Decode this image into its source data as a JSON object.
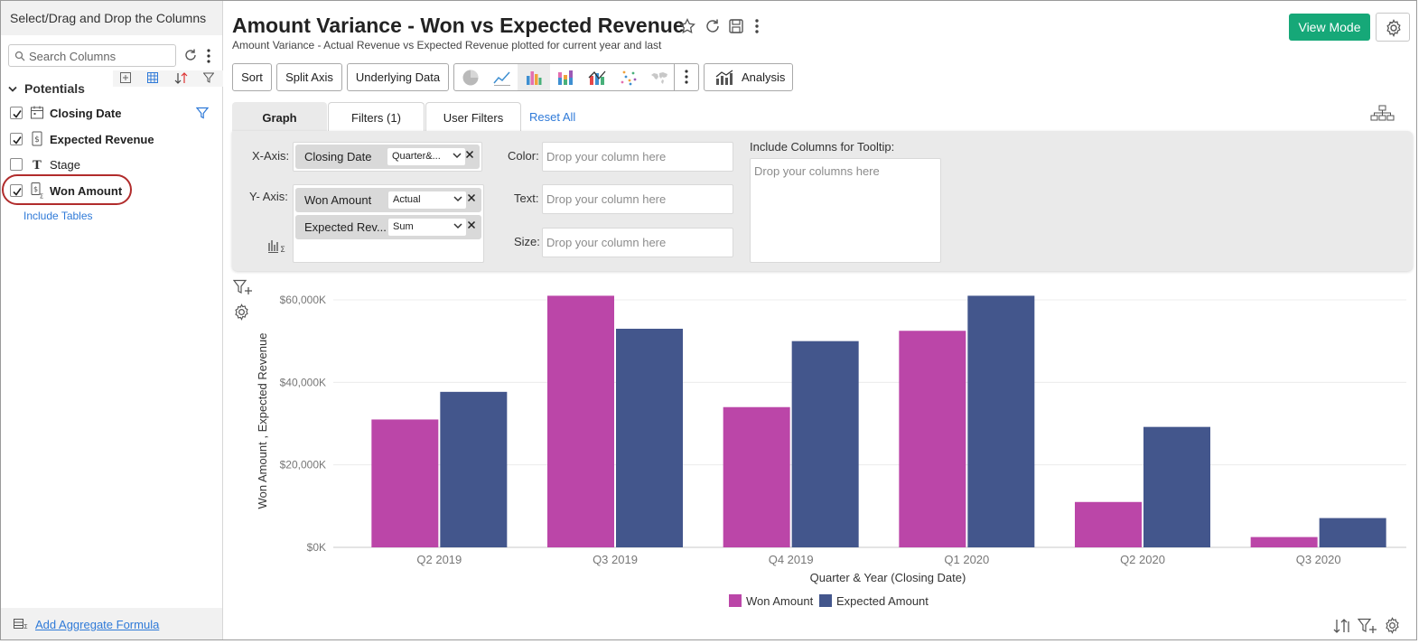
{
  "sidebar": {
    "header": "Select/Drag and Drop the Columns",
    "search_placeholder": "Search Columns",
    "group_title": "Potentials",
    "columns": [
      {
        "label": "Closing Date",
        "checked": true,
        "icon": "calendar-icon"
      },
      {
        "label": "Expected Revenue",
        "checked": true,
        "icon": "currency-icon"
      },
      {
        "label": "Stage",
        "checked": false,
        "icon": "text-type-icon"
      },
      {
        "label": "Won Amount",
        "checked": true,
        "icon": "currency-aggregate-icon"
      }
    ],
    "include_tables": "Include Tables",
    "add_formula": "Add Aggregate Formula"
  },
  "header": {
    "title": "Amount Variance - Won vs Expected Revenue",
    "subtitle": "Amount Variance - Actual Revenue vs Expected Revenue plotted for current year and last",
    "view_mode": "View Mode"
  },
  "toolbar": {
    "sort": "Sort",
    "split_axis": "Split Axis",
    "underlying_data": "Underlying Data",
    "analysis": "Analysis"
  },
  "tabs": {
    "graph": "Graph",
    "filters": "Filters (1)",
    "user_filters": "User Filters",
    "reset_all": "Reset All"
  },
  "shelf": {
    "x_axis_label": "X-Axis:",
    "y_axis_label": "Y- Axis:",
    "x_field": {
      "name": "Closing Date",
      "function": "Quarter&..."
    },
    "y_fields": [
      {
        "name": "Won Amount",
        "function": "Actual"
      },
      {
        "name": "Expected Rev...",
        "function": "Sum"
      }
    ],
    "color_label": "Color:",
    "text_label": "Text:",
    "size_label": "Size:",
    "drop_column": "Drop your column here",
    "tooltip_label": "Include Columns for Tooltip:",
    "drop_columns": "Drop your columns here"
  },
  "colors": {
    "won": "#bb46a8",
    "expected": "#43568c",
    "accent": "#16a878",
    "link": "#2f7ad8"
  },
  "chart_data": {
    "type": "bar",
    "categories": [
      "Q2 2019",
      "Q3 2019",
      "Q4 2019",
      "Q1 2020",
      "Q2 2020",
      "Q3 2020"
    ],
    "series": [
      {
        "name": "Won Amount",
        "values": [
          31000,
          61000,
          34000,
          52500,
          11000,
          2500
        ]
      },
      {
        "name": "Expected Amount",
        "values": [
          37700,
          53000,
          50000,
          61000,
          29200,
          7100
        ]
      }
    ],
    "yticks": [
      "$0K",
      "$20,000K",
      "$40,000K",
      "$60,000K"
    ],
    "ylim": [
      0,
      60000
    ],
    "xlabel": "Quarter & Year (Closing Date)",
    "ylabel": "Won Amount , Expected Revenue",
    "legend": [
      "Won Amount",
      "Expected Amount"
    ],
    "legend_position": "bottom",
    "grid": true
  }
}
